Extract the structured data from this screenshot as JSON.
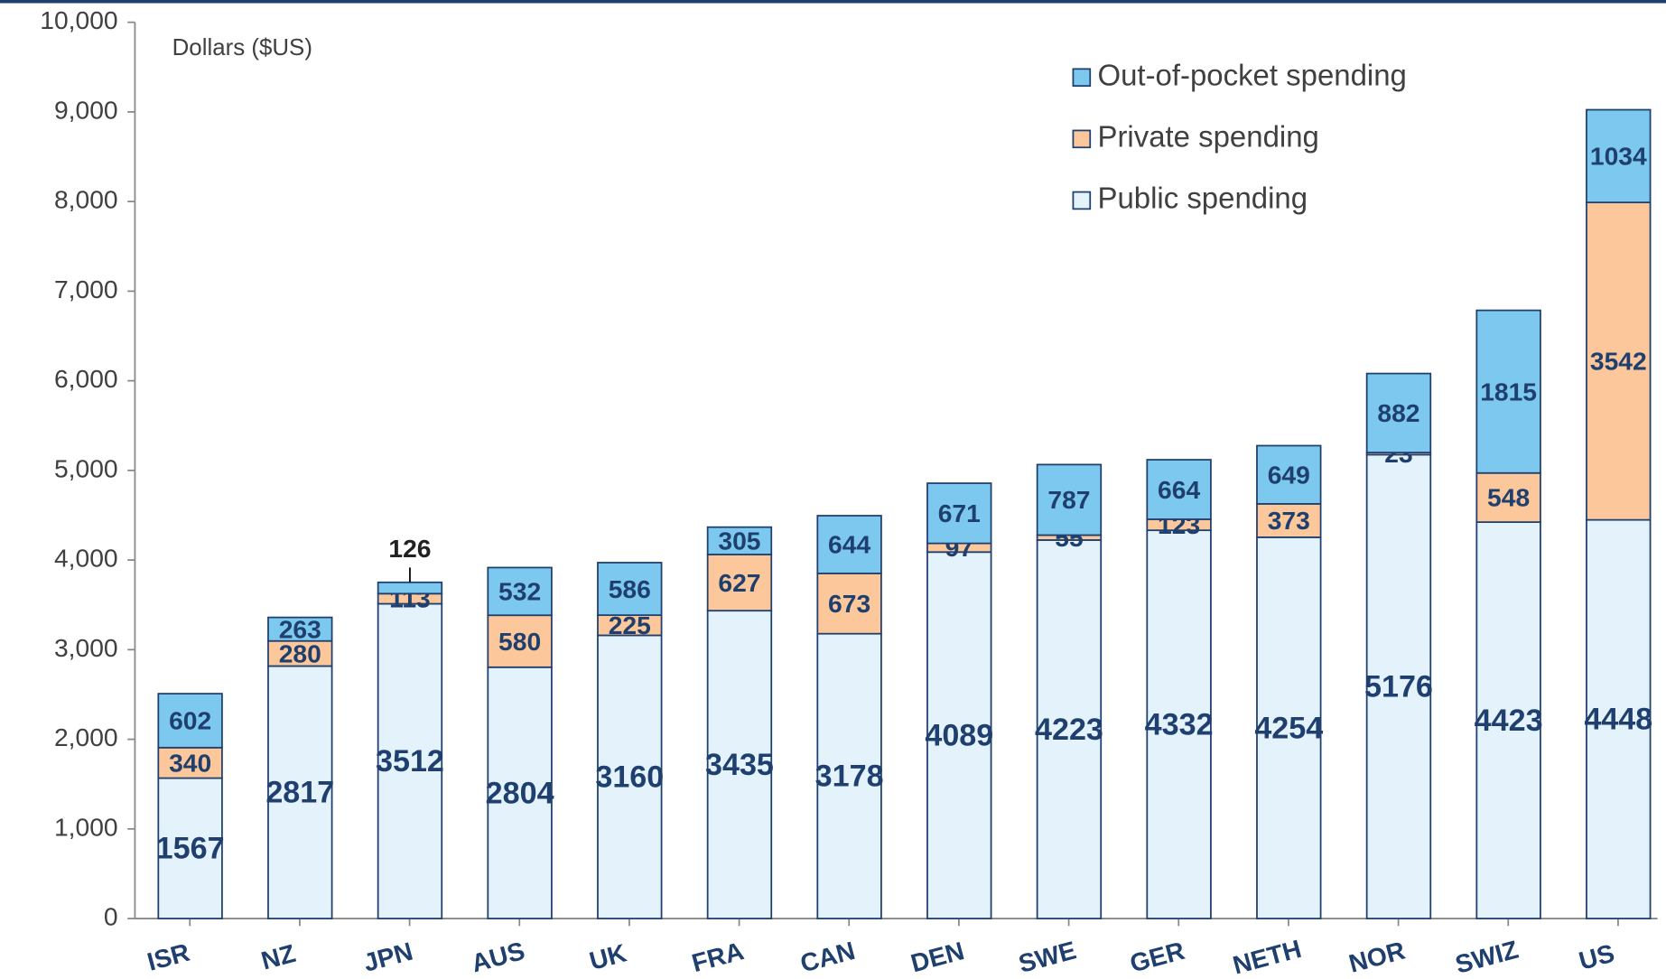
{
  "chart_data": {
    "type": "stacked_bar",
    "y_label": "Dollars ($US)",
    "categories": [
      "ISR",
      "NZ",
      "JPN",
      "AUS",
      "UK",
      "FRA",
      "CAN",
      "DEN",
      "SWE",
      "GER",
      "NETH",
      "NOR",
      "SWIZ",
      "US"
    ],
    "series": [
      {
        "name": "Public spending",
        "color": "#e3f2fb",
        "values": [
          1567,
          2817,
          3512,
          2804,
          3160,
          3435,
          3178,
          4089,
          4223,
          4332,
          4254,
          5176,
          4423,
          4448
        ]
      },
      {
        "name": "Private spending",
        "color": "#fcc79a",
        "values": [
          340,
          280,
          113,
          580,
          225,
          627,
          673,
          97,
          55,
          123,
          373,
          23,
          548,
          3542
        ]
      },
      {
        "name": "Out-of-pocket spending",
        "color": "#7dc8ee",
        "values": [
          602,
          263,
          126,
          532,
          586,
          305,
          644,
          671,
          787,
          664,
          649,
          882,
          1815,
          1034
        ]
      }
    ],
    "ylim": [
      0,
      10000
    ],
    "yticks": [
      0,
      {
        "value": 1000,
        "label": "1,000"
      },
      {
        "value": 2000,
        "label": "2,000"
      },
      {
        "value": 3000,
        "label": "3,000"
      },
      {
        "value": 4000,
        "label": "4,000"
      },
      {
        "value": 5000,
        "label": "5,000"
      },
      {
        "value": 6000,
        "label": "6,000"
      },
      {
        "value": 7000,
        "label": "7,000"
      },
      {
        "value": 8000,
        "label": "8,000"
      },
      {
        "value": 9000,
        "label": "9,000"
      },
      {
        "value": 10000,
        "label": "10,000"
      }
    ],
    "legend": "upper right"
  }
}
